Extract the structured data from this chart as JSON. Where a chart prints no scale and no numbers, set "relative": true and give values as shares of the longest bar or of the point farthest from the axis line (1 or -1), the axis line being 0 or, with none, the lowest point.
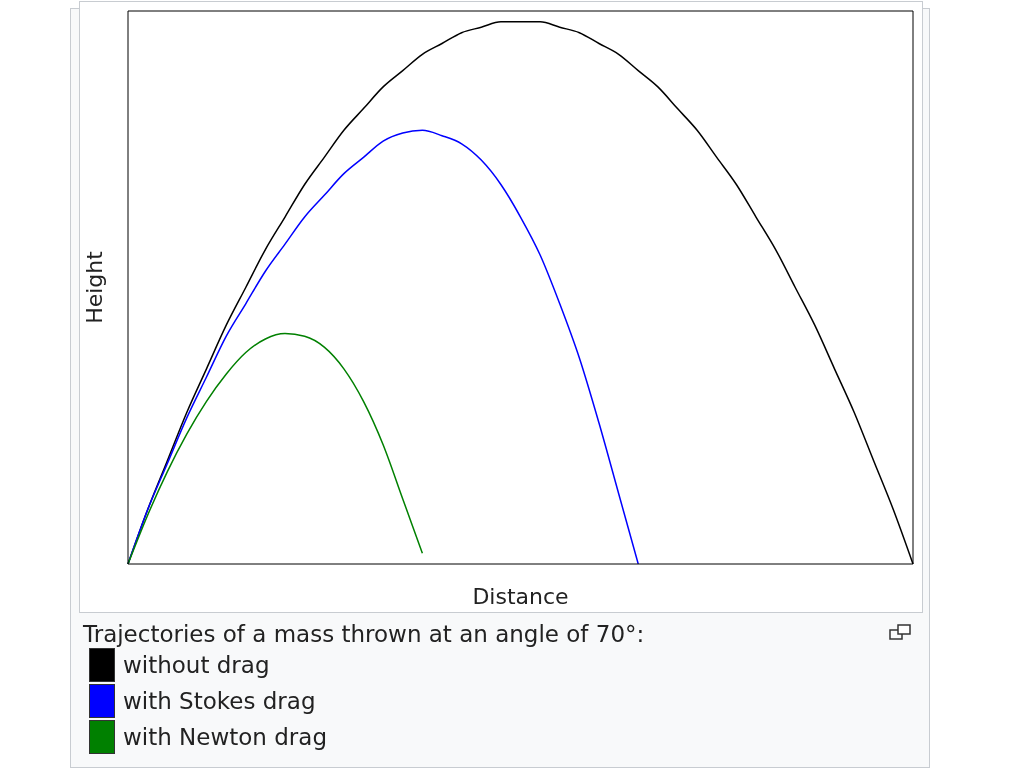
{
  "chart_data": {
    "type": "line",
    "xlabel": "Distance",
    "ylabel": "Height",
    "relative": true,
    "marker": "none",
    "line_style": "solid",
    "legend": "bottom",
    "annotations": [
      "Trajectories of a mass thrown at an angle of 70°:"
    ],
    "categories": [
      null,
      null,
      null,
      null,
      null,
      null,
      null,
      null,
      null,
      null,
      null,
      null,
      null,
      null,
      null,
      null,
      null,
      null,
      null,
      null,
      null,
      null,
      null,
      null,
      null,
      null,
      null,
      null,
      null,
      null,
      null,
      null,
      null,
      null,
      null,
      null,
      null,
      null,
      null,
      null,
      null
    ],
    "series": [
      {
        "name": "without drag",
        "color": "#000000",
        "values": [
          0,
          0.1,
          0.19,
          0.28,
          0.36,
          0.44,
          0.51,
          0.58,
          0.64,
          0.7,
          0.75,
          0.8,
          0.84,
          0.88,
          0.91,
          0.94,
          0.96,
          0.98,
          0.99,
          1,
          1,
          1,
          0.99,
          0.98,
          0.96,
          0.94,
          0.91,
          0.88,
          0.84,
          0.8,
          0.75,
          0.7,
          0.64,
          0.58,
          0.51,
          0.44,
          0.36,
          0.28,
          0.19,
          0.1,
          0
        ]
      },
      {
        "name": "with Stokes drag",
        "color": "#0000ff",
        "values": [
          0,
          0.1,
          0.185,
          0.27,
          0.345,
          0.42,
          0.48,
          0.54,
          0.59,
          0.64,
          0.68,
          0.72,
          0.75,
          0.78,
          0.795,
          0.8,
          0.79,
          0.775,
          0.745,
          0.7,
          0.64,
          0.57,
          0.48,
          0.38,
          0.26,
          0.13,
          0,
          null,
          null,
          null,
          null,
          null,
          null,
          null,
          null,
          null,
          null,
          null,
          null,
          null,
          null
        ]
      },
      {
        "name": "with Newton drag",
        "color": "#008000",
        "values": [
          0,
          0.09,
          0.17,
          0.24,
          0.3,
          0.35,
          0.39,
          0.415,
          0.425,
          0.42,
          0.4,
          0.36,
          0.3,
          0.22,
          0.12,
          0.02,
          null,
          null,
          null,
          null,
          null,
          null,
          null,
          null,
          null,
          null,
          null,
          null,
          null,
          null,
          null,
          null,
          null,
          null,
          null,
          null,
          null,
          null,
          null,
          null,
          null
        ]
      }
    ]
  }
}
